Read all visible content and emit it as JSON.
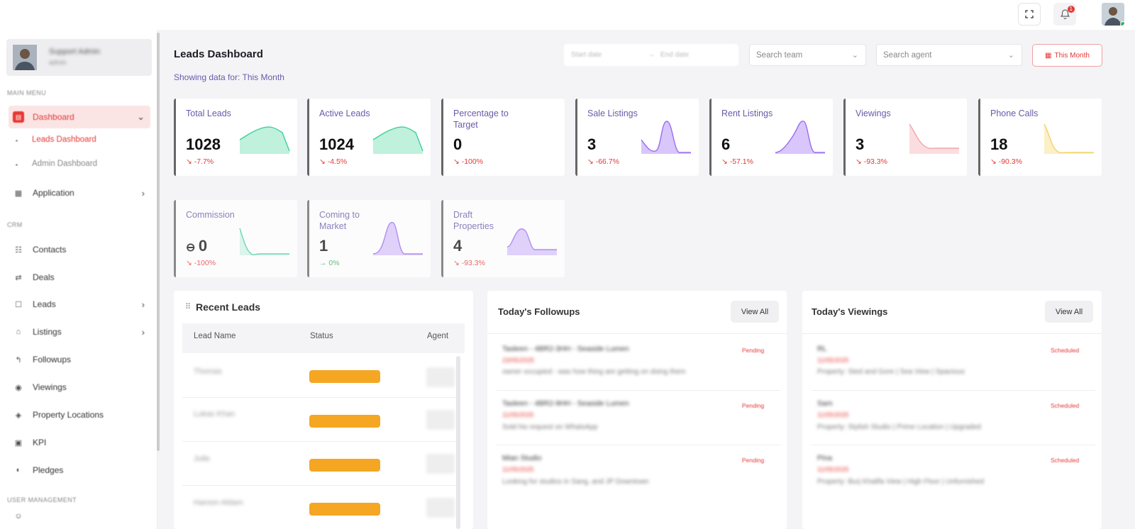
{
  "header": {
    "notification_count": "1"
  },
  "sidebar": {
    "user_name": "Support Admin",
    "user_role": "admin",
    "sections": {
      "main": "MAIN MENU",
      "crm": "CRM",
      "user_mgmt": "USER MANAGEMENT"
    },
    "items": {
      "dashboard": "Dashboard",
      "leads_dashboard": "Leads Dashboard",
      "admin_dashboard": "Admin Dashboard",
      "application": "Application",
      "contacts": "Contacts",
      "deals": "Deals",
      "leads": "Leads",
      "listings": "Listings",
      "followups": "Followups",
      "viewings": "Viewings",
      "property_locations": "Property Locations",
      "kpi": "KPI",
      "pledges": "Pledges"
    }
  },
  "page": {
    "title": "Leads Dashboard",
    "showing": "Showing data for: This Month",
    "start_date_placeholder": "Start date",
    "date_arrow": "→",
    "end_date_placeholder": "End date",
    "search_team": "Search team",
    "search_agent": "Search agent",
    "this_month": "This Month"
  },
  "stats": {
    "total_leads": {
      "label": "Total Leads",
      "value": "1028",
      "change": "-7.7%"
    },
    "active_leads": {
      "label": "Active Leads",
      "value": "1024",
      "change": "-4.5%"
    },
    "pct_target": {
      "label": "Percentage to Target",
      "value": "0",
      "change": "-100%"
    },
    "sale_listings": {
      "label": "Sale Listings",
      "value": "3",
      "change": "-66.7%"
    },
    "rent_listings": {
      "label": "Rent Listings",
      "value": "6",
      "change": "-57.1%"
    },
    "viewings": {
      "label": "Viewings",
      "value": "3",
      "change": "-93.3%"
    },
    "phone_calls": {
      "label": "Phone Calls",
      "value": "18",
      "change": "-90.3%"
    },
    "commission": {
      "label": "Commission",
      "value": "0",
      "change": "-100%"
    },
    "coming_market": {
      "label": "Coming to Market",
      "value": "1",
      "change": "0%"
    },
    "draft_properties": {
      "label": "Draft Properties",
      "value": "4",
      "change": "-93.3%"
    }
  },
  "colors": {
    "green": "#3fcf9a",
    "purple": "#9b6cf0",
    "pink": "#f2a3aa",
    "yellow": "#f1d36b",
    "accent": "#e53935"
  },
  "recent_leads": {
    "title": "Recent Leads",
    "headers": {
      "name": "Lead Name",
      "status": "Status",
      "agent": "Agent"
    },
    "rows": [
      {
        "name": "Thomas"
      },
      {
        "name": "Lukas Khan"
      },
      {
        "name": "Julie"
      },
      {
        "name": "Haroon Aldam"
      }
    ]
  },
  "followups": {
    "title": "Today's Followups",
    "view_all": "View All",
    "items": [
      {
        "title": "Tasleen - 4BR2-3HH - Seaside Lumen",
        "date": "23/05/2025",
        "note": "owner occupied - was how thing are getting on doing them",
        "status": "Pending"
      },
      {
        "title": "Tasleen - 4BR2-9HH - Seaside Lumen",
        "date": "11/05/2025",
        "note": "Sold his request on WhatsApp",
        "status": "Pending"
      },
      {
        "title": "Mian Studio",
        "date": "11/05/2025",
        "note": "Looking for studios in Sang, and JP Downtown",
        "status": "Pending"
      }
    ]
  },
  "viewings": {
    "title": "Today's Viewings",
    "view_all": "View All",
    "items": [
      {
        "title": "RL",
        "date": "11/05/2025",
        "note": "Property: Sted and Gore | Sea View | Spacious",
        "status": "Scheduled"
      },
      {
        "title": "Sam",
        "date": "11/05/2025",
        "note": "Property: Stylish Studio | Prime Location | Upgraded",
        "status": "Scheduled"
      },
      {
        "title": "Pina",
        "date": "11/05/2025",
        "note": "Property: Burj Khalifa View | High Floor | Unfurnished",
        "status": "Scheduled"
      }
    ]
  }
}
